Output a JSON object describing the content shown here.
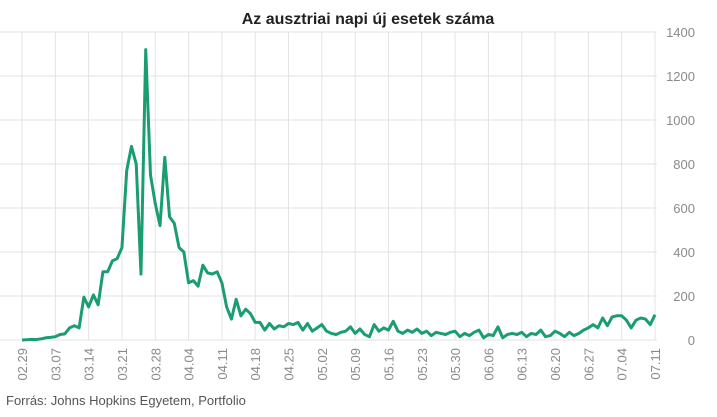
{
  "chart_data": {
    "type": "line",
    "title": "Az ausztriai napi új esetek száma",
    "source": "Forrás: Johns Hopkins Egyetem, Portfolio",
    "categories": [
      "02.29",
      null,
      null,
      null,
      null,
      null,
      null,
      "03.07",
      null,
      null,
      null,
      null,
      null,
      null,
      "03.14",
      null,
      null,
      null,
      null,
      null,
      null,
      "03.21",
      null,
      null,
      null,
      null,
      null,
      null,
      "03.28",
      null,
      null,
      null,
      null,
      null,
      null,
      "04.04",
      null,
      null,
      null,
      null,
      null,
      null,
      "04.11",
      null,
      null,
      null,
      null,
      null,
      null,
      "04.18",
      null,
      null,
      null,
      null,
      null,
      null,
      "04.25",
      null,
      null,
      null,
      null,
      null,
      null,
      "05.02",
      null,
      null,
      null,
      null,
      null,
      null,
      "05.09",
      null,
      null,
      null,
      null,
      null,
      null,
      "05.16",
      null,
      null,
      null,
      null,
      null,
      null,
      "05.23",
      null,
      null,
      null,
      null,
      null,
      null,
      "05.30",
      null,
      null,
      null,
      null,
      null,
      null,
      "06.06",
      null,
      null,
      null,
      null,
      null,
      null,
      "06.13",
      null,
      null,
      null,
      null,
      null,
      null,
      "06.20",
      null,
      null,
      null,
      null,
      null,
      null,
      "06.27",
      null,
      null,
      null,
      null,
      null,
      null,
      "07.04",
      null,
      null,
      null,
      null,
      null,
      null,
      "07.11"
    ],
    "series": [
      {
        "color": "#1a9d6f",
        "values": [
          0,
          1,
          3,
          2,
          5,
          10,
          12,
          15,
          25,
          28,
          55,
          65,
          55,
          195,
          150,
          205,
          160,
          310,
          310,
          360,
          370,
          420,
          770,
          880,
          800,
          300,
          1320,
          750,
          620,
          520,
          830,
          560,
          530,
          420,
          400,
          260,
          270,
          245,
          340,
          305,
          300,
          310,
          260,
          150,
          95,
          185,
          110,
          140,
          120,
          80,
          80,
          45,
          75,
          50,
          65,
          60,
          75,
          70,
          80,
          45,
          75,
          40,
          55,
          70,
          40,
          30,
          25,
          35,
          40,
          60,
          30,
          50,
          25,
          15,
          70,
          40,
          55,
          45,
          85,
          40,
          30,
          45,
          35,
          50,
          30,
          40,
          20,
          35,
          30,
          25,
          35,
          40,
          15,
          30,
          20,
          35,
          45,
          10,
          25,
          20,
          60,
          10,
          25,
          30,
          25,
          35,
          15,
          30,
          25,
          45,
          15,
          20,
          40,
          30,
          15,
          35,
          20,
          30,
          45,
          55,
          70,
          55,
          100,
          65,
          105,
          110,
          110,
          90,
          55,
          90,
          100,
          95,
          70,
          115
        ]
      }
    ],
    "ylim": [
      0,
      1400
    ],
    "yticks": [
      0,
      200,
      400,
      600,
      800,
      1000,
      1200,
      1400
    ],
    "grid": true
  }
}
